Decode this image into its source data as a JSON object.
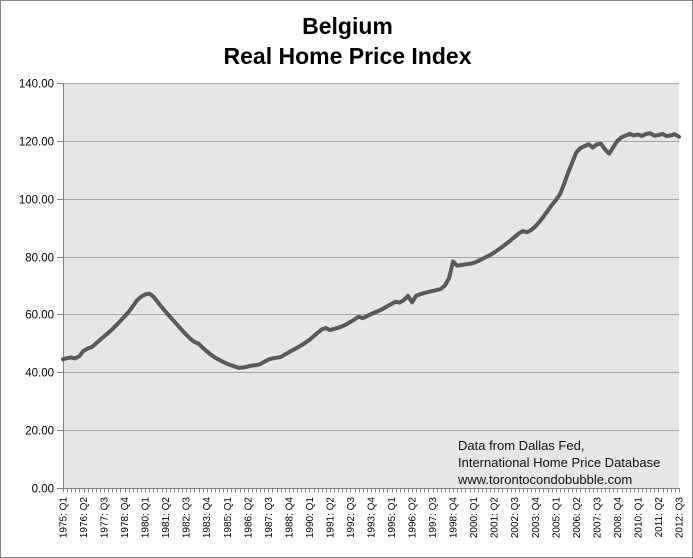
{
  "chart_data": {
    "type": "line",
    "title": "Belgium",
    "subtitle": "Real Home Price Index",
    "xlabel": "",
    "ylabel": "",
    "ylim": [
      0,
      140
    ],
    "y_tick_step": 20,
    "y_tick_labels": [
      "0.00",
      "20.00",
      "40.00",
      "60.00",
      "80.00",
      "100.00",
      "120.00",
      "140.00"
    ],
    "x_start_quarter": "1975: Q1",
    "x_end_quarter": "2012: Q3",
    "x_label_interval_quarters": 5,
    "x_tick_labels": [
      "1975: Q1",
      "1976: Q2",
      "1977: Q3",
      "1978: Q4",
      "1980: Q1",
      "1981: Q2",
      "1982: Q3",
      "1983: Q4",
      "1985: Q1",
      "1986: Q2",
      "1987: Q3",
      "1988: Q4",
      "1990: Q1",
      "1991: Q2",
      "1992: Q3",
      "1993: Q4",
      "1995: Q1",
      "1996: Q2",
      "1997: Q3",
      "1998: Q4",
      "2000: Q1",
      "2001: Q2",
      "2002: Q3",
      "2003: Q4",
      "2005: Q1",
      "2006: Q2",
      "2007: Q3",
      "2008: Q4",
      "2010: Q1",
      "2011: Q2",
      "2012: Q3"
    ],
    "grid": "horizontal",
    "legend_position": "none",
    "colors": {
      "plot_background": "#E6E6E6",
      "gridline": "#A6A6A6",
      "axis": "#808080",
      "series": "#595959",
      "text": "#000000"
    },
    "series": [
      {
        "name": "Real Home Price Index",
        "color": "#595959",
        "stroke_width": 4,
        "values": [
          44.5,
          44.9,
          45.1,
          44.8,
          45.6,
          47.4,
          48.2,
          48.7,
          49.9,
          51.2,
          52.4,
          53.6,
          54.9,
          56.3,
          57.8,
          59.3,
          60.9,
          62.8,
          64.8,
          66.1,
          66.9,
          67.2,
          66.2,
          64.4,
          62.6,
          60.9,
          59.3,
          57.7,
          56.1,
          54.5,
          53.0,
          51.6,
          50.5,
          49.9,
          48.5,
          47.3,
          46.1,
          45.1,
          44.3,
          43.6,
          42.9,
          42.4,
          41.9,
          41.5,
          41.7,
          42.0,
          42.3,
          42.5,
          42.8,
          43.6,
          44.4,
          44.8,
          45.0,
          45.3,
          46.1,
          46.9,
          47.7,
          48.5,
          49.3,
          50.2,
          51.2,
          52.4,
          53.6,
          54.8,
          55.3,
          54.6,
          55.0,
          55.4,
          55.9,
          56.6,
          57.4,
          58.3,
          59.2,
          58.7,
          59.4,
          60.1,
          60.7,
          61.3,
          62.0,
          62.8,
          63.6,
          64.4,
          64.1,
          65.0,
          66.4,
          64.2,
          66.5,
          67.0,
          67.4,
          67.8,
          68.1,
          68.4,
          68.8,
          70.0,
          72.5,
          78.3,
          76.8,
          77.1,
          77.3,
          77.5,
          77.8,
          78.4,
          79.1,
          79.8,
          80.5,
          81.4,
          82.4,
          83.4,
          84.5,
          85.6,
          86.8,
          88.0,
          88.8,
          88.4,
          89.2,
          90.4,
          92.0,
          93.8,
          95.8,
          97.8,
          99.5,
          101.5,
          105.0,
          109.0,
          112.5,
          116.0,
          117.5,
          118.2,
          118.8,
          117.7,
          118.8,
          119.0,
          117.0,
          115.6,
          117.8,
          120.0,
          121.2,
          121.8,
          122.4,
          121.9,
          122.2,
          121.7,
          122.4,
          122.6,
          121.8,
          122.0,
          122.4,
          121.6,
          121.9,
          122.3,
          121.4
        ]
      }
    ]
  },
  "annotation": {
    "line1": "Data from Dallas Fed,",
    "line2": "International Home Price Database",
    "line3": "www.torontocondobubble.com"
  }
}
